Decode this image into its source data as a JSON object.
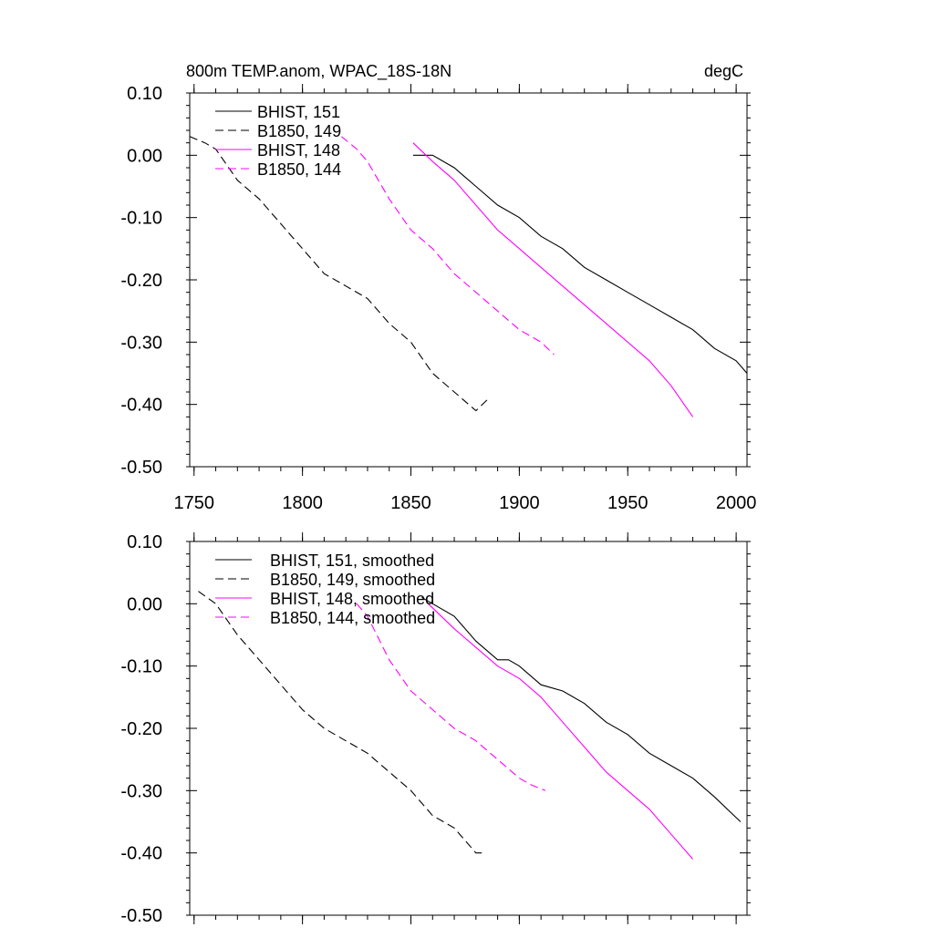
{
  "chart_data": [
    {
      "type": "line",
      "title": "800m TEMP.anom, WPAC_18S-18N",
      "units": "degC",
      "xlim": [
        1748,
        2005
      ],
      "ylim": [
        -0.5,
        0.1
      ],
      "xticks": [
        1750,
        1800,
        1850,
        1900,
        1950,
        2000
      ],
      "yticks": [
        0.1,
        0.0,
        -0.1,
        -0.2,
        -0.3,
        -0.4,
        -0.5
      ],
      "xtick_labels": [
        "1750",
        "1800",
        "1850",
        "1900",
        "1950",
        "2000"
      ],
      "ytick_labels": [
        "0.10",
        "0.00",
        "-0.10",
        "-0.20",
        "-0.30",
        "-0.40",
        "-0.50"
      ],
      "series": [
        {
          "name": "BHIST, 151",
          "color": "#000000",
          "dash": "solid",
          "x": [
            1851,
            1860,
            1870,
            1880,
            1890,
            1900,
            1910,
            1920,
            1930,
            1940,
            1950,
            1960,
            1970,
            1980,
            1990,
            2000,
            2005
          ],
          "y": [
            0.0,
            0.0,
            -0.02,
            -0.05,
            -0.08,
            -0.1,
            -0.13,
            -0.15,
            -0.18,
            -0.2,
            -0.22,
            -0.24,
            -0.26,
            -0.28,
            -0.31,
            -0.33,
            -0.35
          ]
        },
        {
          "name": "B1850, 149",
          "color": "#000000",
          "dash": "dashed",
          "x": [
            1748,
            1755,
            1760,
            1770,
            1780,
            1790,
            1800,
            1810,
            1820,
            1830,
            1840,
            1850,
            1860,
            1870,
            1880,
            1886
          ],
          "y": [
            0.03,
            0.02,
            0.01,
            -0.04,
            -0.07,
            -0.11,
            -0.15,
            -0.19,
            -0.21,
            -0.23,
            -0.27,
            -0.3,
            -0.35,
            -0.38,
            -0.41,
            -0.39
          ]
        },
        {
          "name": "BHIST, 148",
          "color": "#ff00ff",
          "dash": "solid",
          "x": [
            1851,
            1860,
            1870,
            1880,
            1890,
            1900,
            1910,
            1920,
            1930,
            1940,
            1950,
            1960,
            1970,
            1980
          ],
          "y": [
            0.02,
            -0.01,
            -0.04,
            -0.08,
            -0.12,
            -0.15,
            -0.18,
            -0.21,
            -0.24,
            -0.27,
            -0.3,
            -0.33,
            -0.37,
            -0.42
          ]
        },
        {
          "name": "B1850, 144",
          "color": "#ff00ff",
          "dash": "dashed",
          "x": [
            1818,
            1825,
            1830,
            1840,
            1850,
            1860,
            1870,
            1880,
            1890,
            1900,
            1910,
            1916
          ],
          "y": [
            0.03,
            0.01,
            -0.01,
            -0.07,
            -0.12,
            -0.15,
            -0.19,
            -0.22,
            -0.25,
            -0.28,
            -0.3,
            -0.32
          ]
        }
      ]
    },
    {
      "type": "line",
      "title": "",
      "units": "",
      "xlim": [
        1748,
        2005
      ],
      "ylim": [
        -0.5,
        0.1
      ],
      "xticks": [
        1750,
        1800,
        1850,
        1900,
        1950,
        2000
      ],
      "yticks": [
        0.1,
        0.0,
        -0.1,
        -0.2,
        -0.3,
        -0.4,
        -0.5
      ],
      "xtick_labels": [],
      "ytick_labels": [
        "0.10",
        "0.00",
        "-0.10",
        "-0.20",
        "-0.30",
        "-0.40",
        "-0.50"
      ],
      "series": [
        {
          "name": "BHIST, 151, smoothed",
          "color": "#000000",
          "dash": "solid",
          "x": [
            1855,
            1860,
            1870,
            1880,
            1890,
            1895,
            1900,
            1910,
            1920,
            1930,
            1940,
            1950,
            1960,
            1970,
            1980,
            1990,
            2002
          ],
          "y": [
            0.01,
            0.0,
            -0.02,
            -0.06,
            -0.09,
            -0.09,
            -0.1,
            -0.13,
            -0.14,
            -0.16,
            -0.19,
            -0.21,
            -0.24,
            -0.26,
            -0.28,
            -0.31,
            -0.35
          ]
        },
        {
          "name": "B1850, 149, smoothed",
          "color": "#000000",
          "dash": "dashed",
          "x": [
            1752,
            1760,
            1770,
            1780,
            1790,
            1800,
            1810,
            1820,
            1830,
            1840,
            1850,
            1860,
            1870,
            1880,
            1883
          ],
          "y": [
            0.02,
            0.0,
            -0.05,
            -0.09,
            -0.13,
            -0.17,
            -0.2,
            -0.22,
            -0.24,
            -0.27,
            -0.3,
            -0.34,
            -0.36,
            -0.4,
            -0.4
          ]
        },
        {
          "name": "BHIST, 148, smoothed",
          "color": "#ff00ff",
          "dash": "solid",
          "x": [
            1858,
            1870,
            1880,
            1890,
            1900,
            1910,
            1920,
            1930,
            1940,
            1950,
            1960,
            1970,
            1980
          ],
          "y": [
            0.0,
            -0.04,
            -0.07,
            -0.1,
            -0.12,
            -0.15,
            -0.19,
            -0.23,
            -0.27,
            -0.3,
            -0.33,
            -0.37,
            -0.41
          ]
        },
        {
          "name": "B1850, 144, smoothed",
          "color": "#ff00ff",
          "dash": "dashed",
          "x": [
            1825,
            1830,
            1840,
            1850,
            1860,
            1870,
            1880,
            1890,
            1900,
            1905,
            1912
          ],
          "y": [
            0.0,
            -0.02,
            -0.09,
            -0.14,
            -0.17,
            -0.2,
            -0.22,
            -0.25,
            -0.28,
            -0.29,
            -0.3
          ]
        }
      ]
    }
  ]
}
